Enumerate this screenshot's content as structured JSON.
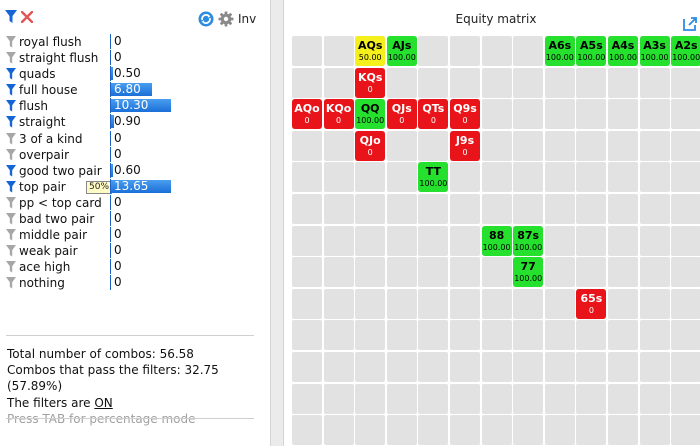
{
  "toolbar": {
    "inv_label": "Inv",
    "icons": [
      "filter-icon",
      "clear-icon",
      "refresh-icon",
      "gear-icon"
    ]
  },
  "filters": [
    {
      "label": "royal flush",
      "value": "0",
      "active": false,
      "fill": 0
    },
    {
      "label": "straight flush",
      "value": "0",
      "active": false,
      "fill": 0
    },
    {
      "label": "quads",
      "value": "0.50",
      "active": true,
      "fill": 0.03
    },
    {
      "label": "full house",
      "value": "6.80",
      "active": true,
      "fill": 0.68
    },
    {
      "label": "flush",
      "value": "10.30",
      "active": true,
      "fill": 1.0
    },
    {
      "label": "straight",
      "value": "0.90",
      "active": true,
      "fill": 0.05
    },
    {
      "label": "3 of a kind",
      "value": "0",
      "active": false,
      "fill": 0
    },
    {
      "label": "overpair",
      "value": "0",
      "active": false,
      "fill": 0
    },
    {
      "label": "good two pair",
      "value": "0.60",
      "active": true,
      "fill": 0.03
    },
    {
      "label": "top pair",
      "value": "13.65",
      "active": true,
      "fill": 1.0,
      "badge": "50%"
    },
    {
      "label": "pp < top card",
      "value": "0",
      "active": false,
      "fill": 0
    },
    {
      "label": "bad two pair",
      "value": "0",
      "active": false,
      "fill": 0
    },
    {
      "label": "middle pair",
      "value": "0",
      "active": false,
      "fill": 0
    },
    {
      "label": "weak pair",
      "value": "0",
      "active": false,
      "fill": 0
    },
    {
      "label": "ace high",
      "value": "0",
      "active": false,
      "fill": 0
    },
    {
      "label": "nothing",
      "value": "0",
      "active": false,
      "fill": 0
    }
  ],
  "stats": {
    "total_combos": "Total number of combos: 56.58",
    "pass_combos": "Combos that pass the filters: 32.75 (57.89%)",
    "filters_prefix": "The filters are ",
    "filters_state": "ON",
    "hint": "Press TAB for percentage mode"
  },
  "matrix": {
    "title": "Equity matrix",
    "hands": [
      {
        "name": "AQs",
        "value": "50.00",
        "color": "yellow",
        "row": 0,
        "col": 2
      },
      {
        "name": "AJs",
        "value": "100.00",
        "color": "green",
        "row": 0,
        "col": 3
      },
      {
        "name": "A6s",
        "value": "100.00",
        "color": "green",
        "row": 0,
        "col": 8
      },
      {
        "name": "A5s",
        "value": "100.00",
        "color": "green",
        "row": 0,
        "col": 9
      },
      {
        "name": "A4s",
        "value": "100.00",
        "color": "green",
        "row": 0,
        "col": 10
      },
      {
        "name": "A3s",
        "value": "100.00",
        "color": "green",
        "row": 0,
        "col": 11
      },
      {
        "name": "A2s",
        "value": "100.00",
        "color": "green",
        "row": 0,
        "col": 12
      },
      {
        "name": "KQs",
        "value": "0",
        "color": "red",
        "row": 1,
        "col": 2
      },
      {
        "name": "AQo",
        "value": "0",
        "color": "red",
        "row": 2,
        "col": 0
      },
      {
        "name": "KQo",
        "value": "0",
        "color": "red",
        "row": 2,
        "col": 1
      },
      {
        "name": "QQ",
        "value": "100.00",
        "color": "green",
        "row": 2,
        "col": 2
      },
      {
        "name": "QJs",
        "value": "0",
        "color": "red",
        "row": 2,
        "col": 3
      },
      {
        "name": "QTs",
        "value": "0",
        "color": "red",
        "row": 2,
        "col": 4
      },
      {
        "name": "Q9s",
        "value": "0",
        "color": "red",
        "row": 2,
        "col": 5
      },
      {
        "name": "QJo",
        "value": "0",
        "color": "red",
        "row": 3,
        "col": 2
      },
      {
        "name": "J9s",
        "value": "0",
        "color": "red",
        "row": 3,
        "col": 5
      },
      {
        "name": "TT",
        "value": "100.00",
        "color": "green",
        "row": 4,
        "col": 4
      },
      {
        "name": "88",
        "value": "100.00",
        "color": "green",
        "row": 6,
        "col": 6
      },
      {
        "name": "87s",
        "value": "100.00",
        "color": "green",
        "row": 6,
        "col": 7
      },
      {
        "name": "77",
        "value": "100.00",
        "color": "green",
        "row": 7,
        "col": 7
      },
      {
        "name": "65s",
        "value": "0",
        "color": "red",
        "row": 8,
        "col": 9
      }
    ]
  }
}
